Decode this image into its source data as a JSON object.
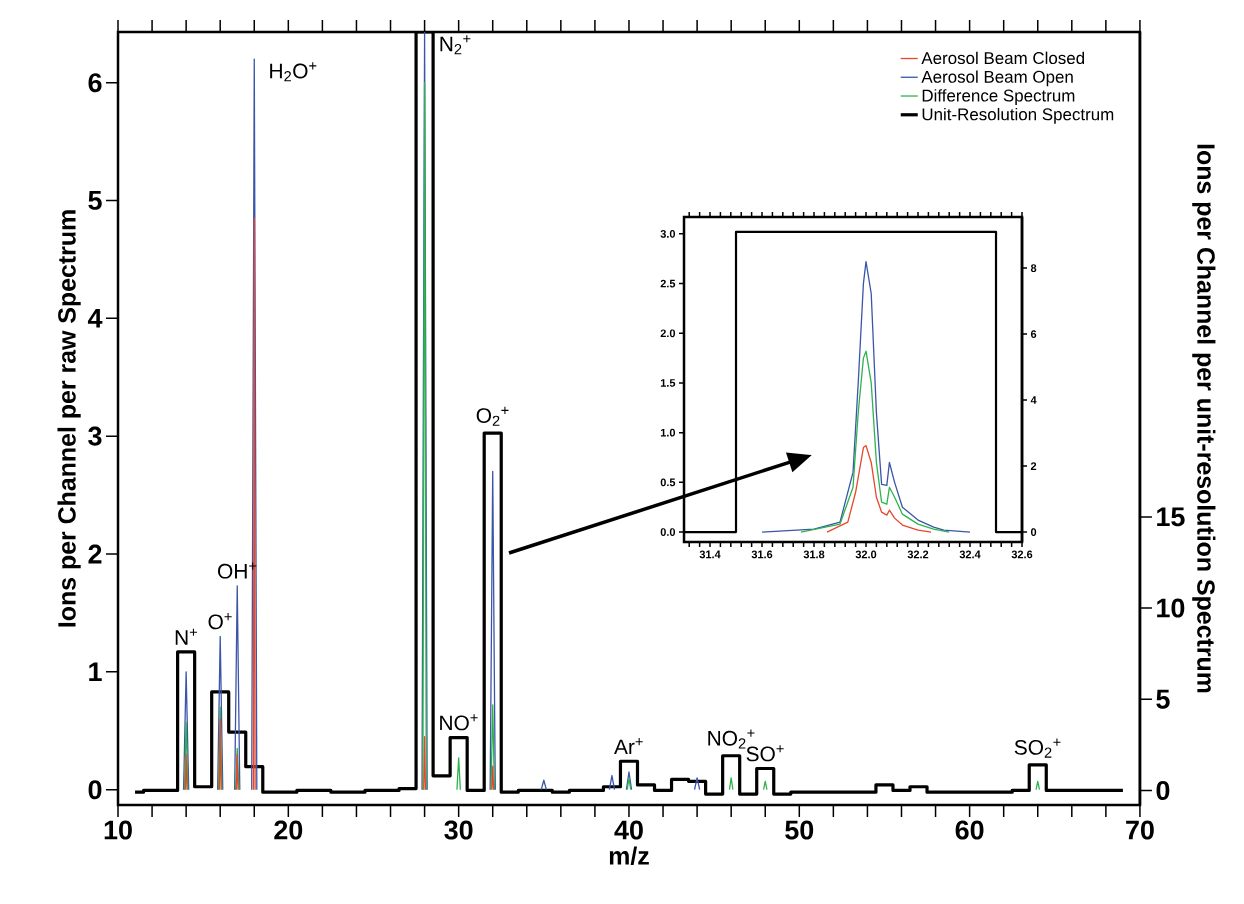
{
  "chart_data": [
    {
      "type": "line",
      "xlabel": "m/z",
      "ylabel": "Ions per Channel per raw Spectrum",
      "y2label": "Ions per Channel per unit-resolution Spectrum",
      "xlim": [
        10,
        70
      ],
      "ylim": [
        -0.13,
        6.43
      ],
      "y2lim": [
        -0.8,
        41.6
      ],
      "xticks": [
        10,
        {
          "value": 12,
          "label": null
        },
        {
          "value": 14,
          "label": null
        },
        {
          "value": 16,
          "label": null
        },
        {
          "value": 18,
          "label": null
        },
        20,
        {
          "value": 22,
          "label": null
        },
        {
          "value": 24,
          "label": null
        },
        {
          "value": 26,
          "label": null
        },
        {
          "value": 28,
          "label": null
        },
        30,
        {
          "value": 32,
          "label": null
        },
        {
          "value": 34,
          "label": null
        },
        {
          "value": 36,
          "label": null
        },
        {
          "value": 38,
          "label": null
        },
        40,
        {
          "value": 42,
          "label": null
        },
        {
          "value": 44,
          "label": null
        },
        {
          "value": 46,
          "label": null
        },
        {
          "value": 48,
          "label": null
        },
        50,
        {
          "value": 52,
          "label": null
        },
        {
          "value": 54,
          "label": null
        },
        {
          "value": 56,
          "label": null
        },
        {
          "value": 58,
          "label": null
        },
        60,
        {
          "value": 62,
          "label": null
        },
        {
          "value": 64,
          "label": null
        },
        {
          "value": 66,
          "label": null
        },
        {
          "value": 68,
          "label": null
        },
        70
      ],
      "yticks": [
        0,
        1,
        2,
        3,
        4,
        5,
        6
      ],
      "y2ticks": [
        0,
        5,
        10,
        15
      ],
      "legend": "top right",
      "annotations": [
        {
          "text": "N$^{+}$",
          "x": 14,
          "y": 1.0
        },
        {
          "text": "O$^{+}$",
          "x": 16,
          "y": 1.3
        },
        {
          "text": "OH$^{+}$",
          "x": 17,
          "y": 1.73
        },
        {
          "text": "H$_{2}$O$^{+}$",
          "x": 18,
          "y": 6.2
        },
        {
          "text": "N$_{2}$$^{+}$",
          "x": 28,
          "y": 6.43
        },
        {
          "text": "NO$^{+}$",
          "x": 30,
          "y": 0.27
        },
        {
          "text": "O$_{2}$$^{+}$",
          "x": 32,
          "y": 2.7
        },
        {
          "text": "Ar$^{+}$",
          "x": 40,
          "y": 0.15
        },
        {
          "text": "NO$_{2}$$^{+}$",
          "x": 46,
          "y": 0.1
        },
        {
          "text": "SO$^{+}$",
          "x": 48,
          "y": 0.07
        },
        {
          "text": "SO$_{2}$$^{+}$",
          "x": 64,
          "y": 0.07
        }
      ],
      "series": [
        {
          "name": "Aerosol Beam Closed",
          "color": "#e8472b",
          "x": [
            13.95,
            14,
            14.05,
            15,
            15.95,
            16,
            16.05,
            16.5,
            16.95,
            17,
            17.05,
            17.5,
            17.95,
            18,
            18.05,
            23,
            27.95,
            28,
            28.05,
            30,
            31.95,
            32,
            32.05
          ],
          "values": [
            0,
            0.3,
            0,
            null,
            0,
            0.6,
            0,
            null,
            0,
            0.3,
            0,
            null,
            0,
            4.85,
            0,
            null,
            0,
            0.45,
            0,
            null,
            0,
            0.2,
            0
          ]
        },
        {
          "name": "Aerosol Beam Open",
          "color": "#3b55a8",
          "x": [
            13.85,
            14,
            14.15,
            15,
            15.85,
            16,
            16.15,
            16.5,
            16.85,
            17,
            17.15,
            17.5,
            17.85,
            18,
            18.15,
            23,
            27.85,
            28,
            28.15,
            30,
            31.85,
            32,
            32.15,
            33.5,
            34.85,
            35,
            35.15,
            37,
            38.85,
            39,
            39.15,
            39.5,
            39.85,
            40,
            40.15,
            42,
            43.85,
            44,
            44.15
          ],
          "values": [
            0,
            1.0,
            0,
            null,
            0,
            1.3,
            0,
            null,
            0,
            1.73,
            0,
            null,
            0,
            6.2,
            0,
            null,
            0,
            6.43,
            0,
            null,
            0,
            2.7,
            0,
            null,
            0,
            0.08,
            0,
            null,
            0,
            0.12,
            0,
            null,
            0,
            0.15,
            0,
            null,
            0,
            0.1,
            0
          ]
        },
        {
          "name": "Difference Spectrum",
          "color": "#2eb34b",
          "x": [
            13.9,
            14,
            14.1,
            15,
            15.9,
            16,
            16.1,
            16.5,
            16.9,
            17,
            17.1,
            22,
            27.9,
            28,
            28.1,
            29,
            29.9,
            30,
            30.1,
            31,
            31.9,
            32,
            32.1,
            36,
            39.9,
            40,
            40.1,
            43,
            45.9,
            46,
            46.1,
            47,
            47.9,
            48,
            48.1,
            56,
            63.9,
            64,
            64.1
          ],
          "values": [
            0,
            0.57,
            0,
            null,
            0,
            0.7,
            0,
            null,
            0,
            0.35,
            0,
            null,
            0,
            6.0,
            0,
            null,
            0,
            0.27,
            0,
            null,
            0,
            0.72,
            0,
            null,
            0,
            0.1,
            0,
            null,
            0,
            0.1,
            0,
            null,
            0,
            0.07,
            0,
            null,
            0,
            0.07,
            0
          ]
        },
        {
          "name": "Unit-Resolution Spectrum",
          "type": "step",
          "axis": "y2",
          "color": "#000000",
          "x": [
            11,
            12,
            13,
            14,
            15,
            16,
            17,
            18,
            19,
            20,
            21,
            22,
            23,
            24,
            25,
            26,
            27,
            28,
            29,
            30,
            31,
            32,
            33,
            34,
            35,
            36,
            37,
            38,
            39,
            40,
            41,
            42,
            43,
            44,
            45,
            46,
            47,
            48,
            49,
            50,
            51,
            52,
            53,
            54,
            55,
            56,
            57,
            58,
            59,
            60,
            61,
            62,
            63,
            64,
            65,
            66,
            67,
            68,
            69
          ],
          "values": [
            -0.1,
            0,
            0,
            7.6,
            0.2,
            5.4,
            3.2,
            1.3,
            -0.1,
            -0.1,
            0,
            0,
            -0.1,
            -0.1,
            0,
            0,
            0.1,
            41.6,
            0.8,
            2.9,
            0,
            19.6,
            -0.1,
            0,
            0,
            -0.1,
            0,
            0,
            0.2,
            1.6,
            0.3,
            0,
            0.6,
            0.5,
            -0.2,
            1.9,
            -0.2,
            1.2,
            -0.2,
            -0.1,
            -0.1,
            -0.1,
            -0.1,
            -0.1,
            0.3,
            0,
            0.2,
            -0.1,
            -0.1,
            -0.1,
            -0.1,
            -0.1,
            0,
            1.4,
            0,
            0,
            0,
            0,
            0
          ]
        }
      ]
    },
    {
      "type": "line",
      "xlim": [
        31.3,
        32.6
      ],
      "ylim": [
        -0.1,
        3.17
      ],
      "y2lim": [
        -0.3,
        9.55
      ],
      "xticks": [
        {
          "value": 31.32,
          "label": null
        },
        {
          "value": 31.36,
          "label": null
        },
        31.4,
        {
          "value": 31.44,
          "label": null
        },
        {
          "value": 31.48,
          "label": null
        },
        {
          "value": 31.52,
          "label": null
        },
        {
          "value": 31.56,
          "label": null
        },
        31.6,
        {
          "value": 31.64,
          "label": null
        },
        {
          "value": 31.68,
          "label": null
        },
        {
          "value": 31.72,
          "label": null
        },
        {
          "value": 31.76,
          "label": null
        },
        31.8,
        {
          "value": 31.84,
          "label": null
        },
        {
          "value": 31.88,
          "label": null
        },
        {
          "value": 31.92,
          "label": null
        },
        {
          "value": 31.96,
          "label": null
        },
        {
          "value": 32,
          "label": "32.0"
        },
        {
          "value": 32.04,
          "label": null
        },
        {
          "value": 32.08,
          "label": null
        },
        {
          "value": 32.12,
          "label": null
        },
        {
          "value": 32.16,
          "label": null
        },
        32.2,
        {
          "value": 32.24,
          "label": null
        },
        {
          "value": 32.28,
          "label": null
        },
        {
          "value": 32.32,
          "label": null
        },
        {
          "value": 32.36,
          "label": null
        },
        32.4,
        {
          "value": 32.44,
          "label": null
        },
        {
          "value": 32.48,
          "label": null
        },
        {
          "value": 32.52,
          "label": null
        },
        {
          "value": 32.56,
          "label": null
        },
        32.6
      ],
      "yticks": [
        {
          "value": 0,
          "label": "0.0"
        },
        0.5,
        {
          "value": 1,
          "label": "1.0"
        },
        1.5,
        {
          "value": 2,
          "label": "2.0"
        },
        2.5,
        {
          "value": 3,
          "label": "3.0"
        }
      ],
      "y2ticks": [
        0,
        2,
        4,
        6,
        8
      ],
      "series": [
        {
          "color": "#e8472b",
          "x": [
            31.85,
            31.93,
            31.96,
            31.99,
            32.0,
            32.02,
            32.04,
            32.06,
            32.08,
            32.09,
            32.11,
            32.14,
            32.2,
            32.25
          ],
          "values": [
            0,
            0.1,
            0.4,
            0.85,
            0.87,
            0.7,
            0.35,
            0.2,
            0.17,
            0.22,
            0.14,
            0.07,
            0.02,
            0
          ]
        },
        {
          "color": "#3b55a8",
          "x": [
            31.6,
            31.8,
            31.9,
            31.95,
            31.97,
            31.99,
            32.0,
            32.02,
            32.04,
            32.06,
            32.08,
            32.09,
            32.11,
            32.14,
            32.2,
            32.26,
            32.3,
            32.4
          ],
          "values": [
            0,
            0.03,
            0.1,
            0.6,
            1.5,
            2.5,
            2.72,
            2.4,
            1.2,
            0.48,
            0.47,
            0.7,
            0.5,
            0.25,
            0.12,
            0.05,
            0.02,
            0
          ]
        },
        {
          "color": "#2eb34b",
          "x": [
            31.75,
            31.9,
            31.95,
            31.97,
            31.99,
            32.0,
            32.02,
            32.04,
            32.06,
            32.08,
            32.09,
            32.11,
            32.14,
            32.2,
            32.26,
            32.32
          ],
          "values": [
            0,
            0.08,
            0.45,
            1.2,
            1.75,
            1.82,
            1.5,
            0.7,
            0.3,
            0.28,
            0.45,
            0.35,
            0.18,
            0.08,
            0.03,
            0
          ]
        },
        {
          "axis": "y2",
          "color": "#000000",
          "x": [
            31.3,
            31.5,
            31.5,
            32.5,
            32.5,
            32.6
          ],
          "values": [
            0,
            0,
            9.1,
            9.1,
            0,
            0
          ]
        }
      ]
    }
  ]
}
